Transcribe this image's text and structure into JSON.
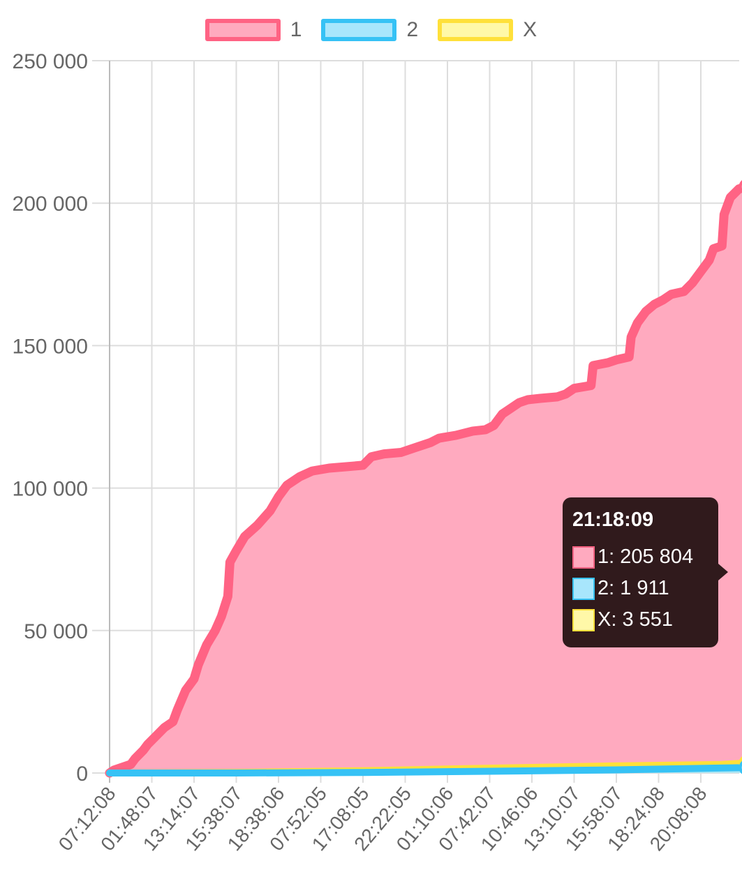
{
  "chart_data": {
    "type": "area",
    "y_ticks": [
      "250 000",
      "200 000",
      "150 000",
      "100 000",
      "50 000",
      "0"
    ],
    "ylim": [
      0,
      250000
    ],
    "x_ticks": [
      "07:12:08",
      "01:48:07",
      "13:14:07",
      "15:38:07",
      "18:38:06",
      "07:52:05",
      "17:08:05",
      "22:22:05",
      "01:10:06",
      "07:42:07",
      "10:46:06",
      "13:10:07",
      "15:58:07",
      "18:24:08",
      "20:08:08"
    ],
    "grid": true,
    "legend_position": "top",
    "series": [
      {
        "name": "1",
        "color": "#ff6384",
        "fill": "#ffaabf",
        "values": [
          [
            0,
            0
          ],
          [
            0.1,
            1000
          ],
          [
            0.3,
            2000
          ],
          [
            0.5,
            3000
          ],
          [
            0.6,
            5000
          ],
          [
            0.8,
            8000
          ],
          [
            0.9,
            10000
          ],
          [
            1.1,
            13000
          ],
          [
            1.3,
            16000
          ],
          [
            1.5,
            18000
          ],
          [
            1.6,
            22000
          ],
          [
            1.8,
            29000
          ],
          [
            2.0,
            33000
          ],
          [
            2.1,
            38000
          ],
          [
            2.3,
            45000
          ],
          [
            2.5,
            50000
          ],
          [
            2.65,
            55000
          ],
          [
            2.8,
            62000
          ],
          [
            2.85,
            74000
          ],
          [
            3.0,
            78000
          ],
          [
            3.2,
            83000
          ],
          [
            3.5,
            87000
          ],
          [
            3.8,
            92000
          ],
          [
            4.0,
            97000
          ],
          [
            4.2,
            101000
          ],
          [
            4.5,
            104000
          ],
          [
            4.8,
            106000
          ],
          [
            5.2,
            107000
          ],
          [
            5.6,
            107500
          ],
          [
            6.0,
            108000
          ],
          [
            6.2,
            111000
          ],
          [
            6.5,
            112000
          ],
          [
            6.9,
            112500
          ],
          [
            7.2,
            114000
          ],
          [
            7.6,
            116000
          ],
          [
            7.8,
            117500
          ],
          [
            8.2,
            118500
          ],
          [
            8.6,
            120000
          ],
          [
            8.9,
            120500
          ],
          [
            9.1,
            122000
          ],
          [
            9.3,
            126000
          ],
          [
            9.5,
            128000
          ],
          [
            9.7,
            130000
          ],
          [
            9.9,
            131000
          ],
          [
            10.2,
            131500
          ],
          [
            10.6,
            132000
          ],
          [
            10.8,
            133000
          ],
          [
            11.0,
            135000
          ],
          [
            11.4,
            136000
          ],
          [
            11.45,
            143000
          ],
          [
            11.8,
            144000
          ],
          [
            12.0,
            145000
          ],
          [
            12.3,
            146000
          ],
          [
            12.35,
            153000
          ],
          [
            12.5,
            158000
          ],
          [
            12.7,
            162000
          ],
          [
            12.9,
            164500
          ],
          [
            13.1,
            166000
          ],
          [
            13.3,
            168000
          ],
          [
            13.6,
            169000
          ],
          [
            13.8,
            172000
          ],
          [
            14.0,
            176000
          ],
          [
            14.2,
            180000
          ],
          [
            14.3,
            184000
          ],
          [
            14.5,
            185000
          ],
          [
            14.55,
            196000
          ],
          [
            14.7,
            202000
          ],
          [
            14.9,
            205000
          ],
          [
            15.1,
            205804
          ]
        ]
      },
      {
        "name": "2",
        "color": "#36c2f5",
        "fill": "#a8e6fc",
        "values": [
          [
            0,
            0
          ],
          [
            3,
            0
          ],
          [
            6,
            200
          ],
          [
            9,
            600
          ],
          [
            12,
            1100
          ],
          [
            15.1,
            1911
          ]
        ]
      },
      {
        "name": "X",
        "color": "#ffe03a",
        "fill": "#fff8a8",
        "values": [
          [
            0,
            0
          ],
          [
            3,
            200
          ],
          [
            6,
            800
          ],
          [
            9,
            1700
          ],
          [
            12,
            2500
          ],
          [
            14.5,
            3000
          ],
          [
            15.1,
            3551
          ]
        ]
      }
    ],
    "tooltip": {
      "title": "21:18:09",
      "rows": [
        {
          "label": "1: 205 804",
          "color": "#ff6384",
          "fill": "#ffaabf"
        },
        {
          "label": "2: 1 911",
          "color": "#36c2f5",
          "fill": "#a8e6fc"
        },
        {
          "label": "X: 3 551",
          "color": "#ffe03a",
          "fill": "#fff8a8"
        }
      ]
    }
  }
}
